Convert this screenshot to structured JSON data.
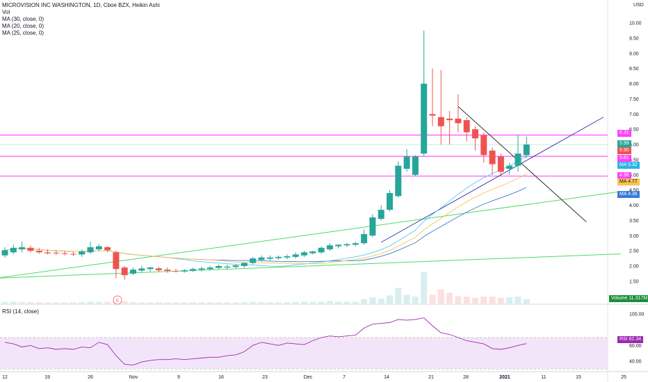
{
  "header": {
    "title": "MICROVISION INC WASHINGTON, 1D, Cboe BZX, Heikin Ashi",
    "indicators": [
      "Vol",
      "MA (30, close, 0)",
      "MA (20, close, 0)",
      "MA (25, close, 0)"
    ]
  },
  "currency": "USD",
  "price_axis": [
    "10.00",
    "9.50",
    "9.00",
    "8.50",
    "8.00",
    "7.50",
    "7.00",
    "6.50",
    "6.00",
    "5.50",
    "5.00",
    "4.50",
    "4.00",
    "3.50",
    "3.00",
    "2.50",
    "2.00",
    "1.50"
  ],
  "time_axis": [
    "12",
    "19",
    "26",
    "Nov",
    "9",
    "16",
    "23",
    "Dec",
    "7",
    "14",
    "21",
    "28",
    "2021",
    "11",
    "15",
    "25"
  ],
  "badges": {
    "price_top": "6.31",
    "price_green": "5.99",
    "price_red": "5.90",
    "price_mid": "5.61",
    "ma_1_label": "MA",
    "ma_1_value": "5.32",
    "price_low": "4.96",
    "ma_2_label": "MA",
    "ma_2_value": "4.77",
    "ma_3_label": "MA",
    "ma_3_value": "4.36",
    "volume_label": "Volume",
    "volume_value": "11.317M"
  },
  "rsi": {
    "title": "RSI (14, close)",
    "axis": [
      "100.00",
      "60.00",
      "40.00"
    ],
    "label": "RSI",
    "value": "62.34"
  },
  "earnings_marker": "E",
  "colors": {
    "up": "#26a69a",
    "down": "#ef5350",
    "magenta_line": "#ff40ff",
    "trend_navy": "#3b3bb0",
    "trend_green": "#4cd964",
    "ma_cyan": "#55c7f5",
    "ma_orange": "#f5c451",
    "ma_blue": "#3a7bd5",
    "rsi_line": "#9c27b0",
    "rsi_band": "#f3e5f9"
  },
  "chart_data": {
    "type": "candlestick",
    "style": "Heikin Ashi",
    "interval": "1D",
    "price_range": [
      1.2,
      10.5
    ],
    "log_scale": false,
    "grid": false,
    "candles": [
      {
        "o": 2.35,
        "h": 2.62,
        "l": 2.28,
        "c": 2.52
      },
      {
        "o": 2.45,
        "h": 2.7,
        "l": 2.38,
        "c": 2.6
      },
      {
        "o": 2.55,
        "h": 2.8,
        "l": 2.45,
        "c": 2.62
      },
      {
        "o": 2.6,
        "h": 2.68,
        "l": 2.45,
        "c": 2.5
      },
      {
        "o": 2.5,
        "h": 2.6,
        "l": 2.4,
        "c": 2.45
      },
      {
        "o": 2.45,
        "h": 2.55,
        "l": 2.38,
        "c": 2.42
      },
      {
        "o": 2.44,
        "h": 2.52,
        "l": 2.36,
        "c": 2.42
      },
      {
        "o": 2.42,
        "h": 2.5,
        "l": 2.35,
        "c": 2.4
      },
      {
        "o": 2.4,
        "h": 2.48,
        "l": 2.33,
        "c": 2.38
      },
      {
        "o": 2.38,
        "h": 2.55,
        "l": 2.3,
        "c": 2.48
      },
      {
        "o": 2.45,
        "h": 2.8,
        "l": 2.4,
        "c": 2.62
      },
      {
        "o": 2.55,
        "h": 2.72,
        "l": 2.48,
        "c": 2.65
      },
      {
        "o": 2.62,
        "h": 2.65,
        "l": 2.45,
        "c": 2.52
      },
      {
        "o": 2.45,
        "h": 2.5,
        "l": 1.6,
        "c": 1.9
      },
      {
        "o": 1.95,
        "h": 2.0,
        "l": 1.55,
        "c": 1.7
      },
      {
        "o": 1.75,
        "h": 1.95,
        "l": 1.7,
        "c": 1.88
      },
      {
        "o": 1.85,
        "h": 2.0,
        "l": 1.8,
        "c": 1.92
      },
      {
        "o": 1.9,
        "h": 1.98,
        "l": 1.82,
        "c": 1.95
      },
      {
        "o": 1.92,
        "h": 1.98,
        "l": 1.8,
        "c": 1.86
      },
      {
        "o": 1.88,
        "h": 1.95,
        "l": 1.78,
        "c": 1.84
      },
      {
        "o": 1.84,
        "h": 1.92,
        "l": 1.78,
        "c": 1.82
      },
      {
        "o": 1.82,
        "h": 1.9,
        "l": 1.78,
        "c": 1.86
      },
      {
        "o": 1.84,
        "h": 1.95,
        "l": 1.8,
        "c": 1.9
      },
      {
        "o": 1.88,
        "h": 1.98,
        "l": 1.82,
        "c": 1.92
      },
      {
        "o": 1.9,
        "h": 2.0,
        "l": 1.85,
        "c": 1.95
      },
      {
        "o": 1.94,
        "h": 2.05,
        "l": 1.9,
        "c": 2.0
      },
      {
        "o": 1.95,
        "h": 2.05,
        "l": 1.9,
        "c": 1.98
      },
      {
        "o": 1.97,
        "h": 2.05,
        "l": 1.92,
        "c": 2.02
      },
      {
        "o": 2.0,
        "h": 2.12,
        "l": 1.95,
        "c": 2.1
      },
      {
        "o": 2.1,
        "h": 2.3,
        "l": 2.05,
        "c": 2.25
      },
      {
        "o": 2.2,
        "h": 2.35,
        "l": 2.15,
        "c": 2.28
      },
      {
        "o": 2.24,
        "h": 2.35,
        "l": 2.18,
        "c": 2.28
      },
      {
        "o": 2.26,
        "h": 2.35,
        "l": 2.2,
        "c": 2.3
      },
      {
        "o": 2.28,
        "h": 2.38,
        "l": 2.22,
        "c": 2.32
      },
      {
        "o": 2.3,
        "h": 2.45,
        "l": 2.25,
        "c": 2.38
      },
      {
        "o": 2.35,
        "h": 2.5,
        "l": 2.3,
        "c": 2.45
      },
      {
        "o": 2.42,
        "h": 2.5,
        "l": 2.38,
        "c": 2.48
      },
      {
        "o": 2.45,
        "h": 2.65,
        "l": 2.4,
        "c": 2.6
      },
      {
        "o": 2.55,
        "h": 2.75,
        "l": 2.5,
        "c": 2.68
      },
      {
        "o": 2.65,
        "h": 2.72,
        "l": 2.58,
        "c": 2.7
      },
      {
        "o": 2.68,
        "h": 2.75,
        "l": 2.62,
        "c": 2.72
      },
      {
        "o": 2.7,
        "h": 2.8,
        "l": 2.65,
        "c": 2.75
      },
      {
        "o": 2.75,
        "h": 3.2,
        "l": 2.7,
        "c": 3.05
      },
      {
        "o": 3.0,
        "h": 3.7,
        "l": 2.95,
        "c": 3.6
      },
      {
        "o": 3.55,
        "h": 4.0,
        "l": 3.5,
        "c": 3.85
      },
      {
        "o": 3.85,
        "h": 4.5,
        "l": 3.8,
        "c": 4.4
      },
      {
        "o": 4.3,
        "h": 5.45,
        "l": 4.25,
        "c": 5.3
      },
      {
        "o": 5.2,
        "h": 5.85,
        "l": 5.1,
        "c": 5.6
      },
      {
        "o": 5.0,
        "h": 5.65,
        "l": 4.95,
        "c": 5.6
      },
      {
        "o": 5.7,
        "h": 9.75,
        "l": 5.6,
        "c": 8.0
      },
      {
        "o": 7.0,
        "h": 8.5,
        "l": 6.6,
        "c": 6.95
      },
      {
        "o": 6.9,
        "h": 8.45,
        "l": 6.0,
        "c": 6.6
      },
      {
        "o": 6.85,
        "h": 7.1,
        "l": 6.0,
        "c": 6.8
      },
      {
        "o": 6.85,
        "h": 7.65,
        "l": 6.4,
        "c": 6.7
      },
      {
        "o": 6.8,
        "h": 6.9,
        "l": 6.1,
        "c": 6.4
      },
      {
        "o": 6.5,
        "h": 6.6,
        "l": 5.8,
        "c": 6.2
      },
      {
        "o": 6.3,
        "h": 6.4,
        "l": 5.4,
        "c": 5.65
      },
      {
        "o": 5.8,
        "h": 5.9,
        "l": 5.0,
        "c": 5.35
      },
      {
        "o": 5.6,
        "h": 5.7,
        "l": 4.95,
        "c": 5.1
      },
      {
        "o": 5.2,
        "h": 5.4,
        "l": 5.0,
        "c": 5.3
      },
      {
        "o": 5.3,
        "h": 6.3,
        "l": 5.1,
        "c": 5.7
      },
      {
        "o": 5.65,
        "h": 6.25,
        "l": 5.55,
        "c": 6.0
      }
    ],
    "volume_relative": [
      0.05,
      0.06,
      0.05,
      0.04,
      0.04,
      0.03,
      0.03,
      0.03,
      0.03,
      0.04,
      0.06,
      0.05,
      0.05,
      0.08,
      0.07,
      0.04,
      0.03,
      0.03,
      0.03,
      0.03,
      0.03,
      0.03,
      0.03,
      0.03,
      0.04,
      0.03,
      0.03,
      0.03,
      0.04,
      0.05,
      0.04,
      0.04,
      0.03,
      0.04,
      0.05,
      0.06,
      0.05,
      0.06,
      0.08,
      0.06,
      0.06,
      0.06,
      0.14,
      0.2,
      0.16,
      0.26,
      0.5,
      0.28,
      0.22,
      1.0,
      0.28,
      0.45,
      0.35,
      0.24,
      0.22,
      0.18,
      0.22,
      0.22,
      0.18,
      0.2,
      0.22,
      0.14
    ],
    "horizontal_levels": [
      6.31,
      5.99,
      5.61,
      4.96
    ],
    "rsi_values": [
      64,
      62,
      58,
      60,
      56,
      57,
      55,
      56,
      55,
      58,
      57,
      64,
      61,
      47,
      36,
      35,
      39,
      41,
      42,
      42,
      43,
      42,
      43,
      44,
      45,
      45,
      47,
      48,
      52,
      60,
      64,
      62,
      60,
      63,
      62,
      61,
      66,
      70,
      72,
      71,
      72,
      73,
      82,
      87,
      88,
      89,
      93,
      92,
      93,
      95,
      85,
      76,
      74,
      70,
      66,
      64,
      62,
      56,
      55,
      57,
      60,
      62.34
    ],
    "rsi_band": [
      30,
      70
    ]
  }
}
